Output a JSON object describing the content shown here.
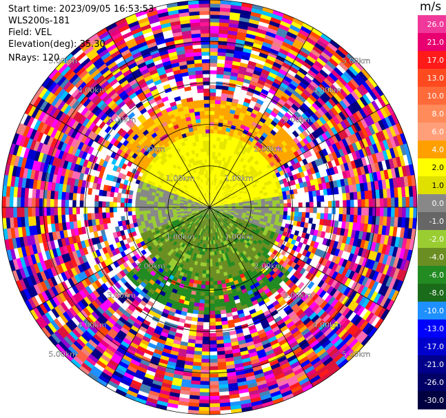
{
  "header": {
    "start_time": "Start time: 2023/09/05 16:53:53",
    "instrument": "WLS200s-181",
    "field": "Field: VEL",
    "elevation": "Elevation(deg): 35.30",
    "nrays": "NRays: 120"
  },
  "colorbar": {
    "unit": "m/s",
    "ticks": [
      "26.0",
      "21.0",
      "17.0",
      "13.0",
      "10.0",
      "8.0",
      "6.0",
      "4.0",
      "2.0",
      "1.0",
      "0.0",
      "-1.0",
      "-2.0",
      "-4.0",
      "-6.0",
      "-8.0",
      "-10.0",
      "-13.0",
      "-17.0",
      "-21.0",
      "-26.0",
      "-30.0"
    ],
    "colors": [
      "#f0389a",
      "#e80070",
      "#ff1a1a",
      "#ff4a20",
      "#ff6a3a",
      "#ff8a5a",
      "#ff9f7a",
      "#ffa000",
      "#ffff00",
      "#e0e000",
      "#888888",
      "#666666",
      "#9acd32",
      "#6b8e23",
      "#228b22",
      "#1a6b1a",
      "#1e90ff",
      "#0000ff",
      "#0000cd",
      "#00008b",
      "#000066",
      "#000040"
    ]
  },
  "chart_data": {
    "type": "ppi",
    "field": "VEL",
    "units": "m/s",
    "nrays": 120,
    "range_ring_labels": [
      "1.00km",
      "2.00km",
      "3.00km",
      "4.00km",
      "5.00km"
    ],
    "range_rings_km": [
      1,
      2,
      3,
      4,
      5
    ],
    "max_range_km": 5.0
  }
}
